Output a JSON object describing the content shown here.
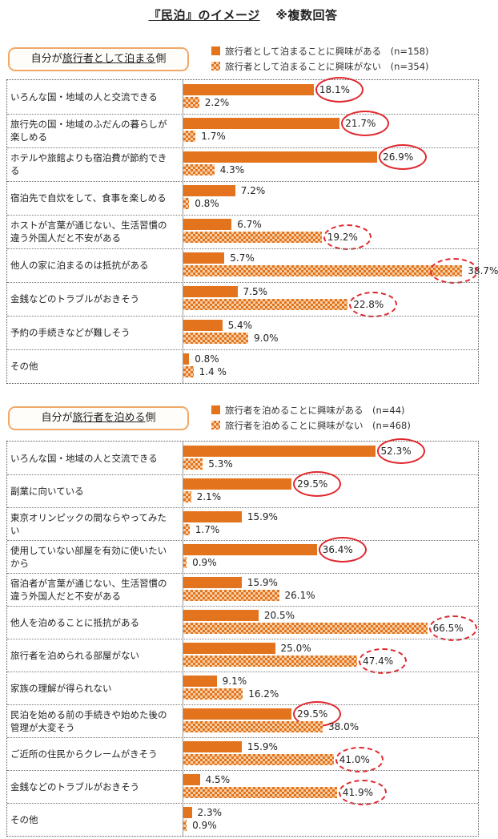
{
  "header": {
    "title": "『民泊』のイメージ",
    "note": "※複数回答"
  },
  "chart_data": [
    {
      "type": "bar",
      "orientation": "horizontal",
      "section_label_prefix": "自分が",
      "section_label_underlined": "旅行者として泊まる",
      "section_label_suffix": "側",
      "categories": [
        [
          "いろんな国・地域の人と交流できる"
        ],
        [
          "旅行先の国・地域のふだんの暮らしが",
          "楽しめる"
        ],
        [
          "ホテルや旅館よりも宿泊費が節約でき",
          "る"
        ],
        [
          "宿泊先で自炊をして、食事を楽しめる"
        ],
        [
          "ホストが言葉が通じない、生活習慣の",
          "違う外国人だと不安がある"
        ],
        [
          "他人の家に泊まるのは抵抗がある"
        ],
        [
          "金銭などのトラブルがおきそう"
        ],
        [
          "予約の手続きなどが難しそう"
        ],
        [
          "その他"
        ]
      ],
      "series": [
        {
          "name": "旅行者として泊まることに興味がある　(n=158)",
          "values": [
            18.1,
            21.7,
            26.9,
            7.2,
            6.7,
            5.7,
            7.5,
            5.4,
            0.8
          ],
          "labels": [
            "18.1%",
            "21.7%",
            "26.9%",
            "7.2%",
            "6.7%",
            "5.7%",
            "7.5%",
            "5.4%",
            "0.8%"
          ],
          "circled": [
            true,
            true,
            true,
            false,
            false,
            false,
            false,
            false,
            false
          ],
          "pattern": "solid"
        },
        {
          "name": "旅行者として泊まることに興味がない　(n=354)",
          "values": [
            2.2,
            1.7,
            4.3,
            0.8,
            19.2,
            38.7,
            22.8,
            9.0,
            1.4
          ],
          "labels": [
            "2.2%",
            "1.7%",
            "4.3%",
            "0.8%",
            "19.2%",
            "38.7%",
            "22.8%",
            "9.0%",
            "1.4 %"
          ],
          "circled": [
            false,
            false,
            false,
            false,
            true,
            true,
            true,
            false,
            false
          ],
          "pattern": "checkered"
        }
      ],
      "circle_styles": {
        "solid": "solid-red",
        "checkered": "dashed-red"
      },
      "xlim": [
        0,
        40
      ],
      "colors": {
        "bar": "#e3731c",
        "bar_light": "#f6cfa7",
        "circle": "#e0282e"
      }
    },
    {
      "type": "bar",
      "orientation": "horizontal",
      "section_label_prefix": "自分が",
      "section_label_underlined": "旅行者を泊める",
      "section_label_suffix": "側",
      "categories": [
        [
          "いろんな国・地域の人と交流できる"
        ],
        [
          "副業に向いている"
        ],
        [
          "東京オリンピックの間ならやってみた",
          "い"
        ],
        [
          "使用していない部屋を有効に使いたい",
          "から"
        ],
        [
          "宿泊者が言葉が通じない、生活習慣の",
          "違う外国人だと不安がある"
        ],
        [
          "他人を泊めることに抵抗がある"
        ],
        [
          "旅行者を泊められる部屋がない"
        ],
        [
          "家族の理解が得られない"
        ],
        [
          "民泊を始める前の手続きや始めた後の",
          "管理が大変そう"
        ],
        [
          "ご近所の住民からクレームがきそう"
        ],
        [
          "金銭などのトラブルがおきそう"
        ],
        [
          "その他"
        ]
      ],
      "series": [
        {
          "name": "旅行者を泊めることに興味がある　(n=44)",
          "values": [
            52.3,
            29.5,
            15.9,
            36.4,
            15.9,
            20.5,
            25.0,
            9.1,
            29.5,
            15.9,
            4.5,
            2.3
          ],
          "labels": [
            "52.3%",
            "29.5%",
            "15.9%",
            "36.4%",
            "15.9%",
            "20.5%",
            "25.0%",
            "9.1%",
            "29.5%",
            "15.9%",
            "4.5%",
            "2.3%"
          ],
          "circled": [
            true,
            true,
            false,
            true,
            false,
            false,
            false,
            false,
            true,
            false,
            false,
            false
          ],
          "pattern": "solid"
        },
        {
          "name": "旅行者を泊めることに興味がない　(n=468)",
          "values": [
            5.3,
            2.1,
            1.7,
            0.9,
            26.1,
            66.5,
            47.4,
            16.2,
            38.0,
            41.0,
            41.9,
            0.9
          ],
          "labels": [
            "5.3%",
            "2.1%",
            "1.7%",
            "0.9%",
            "26.1%",
            "66.5%",
            "47.4%",
            "16.2%",
            "38.0%",
            "41.0%",
            "41.9%",
            "0.9%"
          ],
          "circled": [
            false,
            false,
            false,
            false,
            false,
            true,
            true,
            false,
            false,
            true,
            true,
            false
          ],
          "pattern": "checkered"
        }
      ],
      "circle_styles": {
        "solid": "solid-red",
        "checkered": "dashed-red"
      },
      "xlim": [
        0,
        67
      ],
      "colors": {
        "bar": "#e3731c",
        "bar_light": "#f6cfa7",
        "circle": "#e0282e"
      }
    }
  ]
}
